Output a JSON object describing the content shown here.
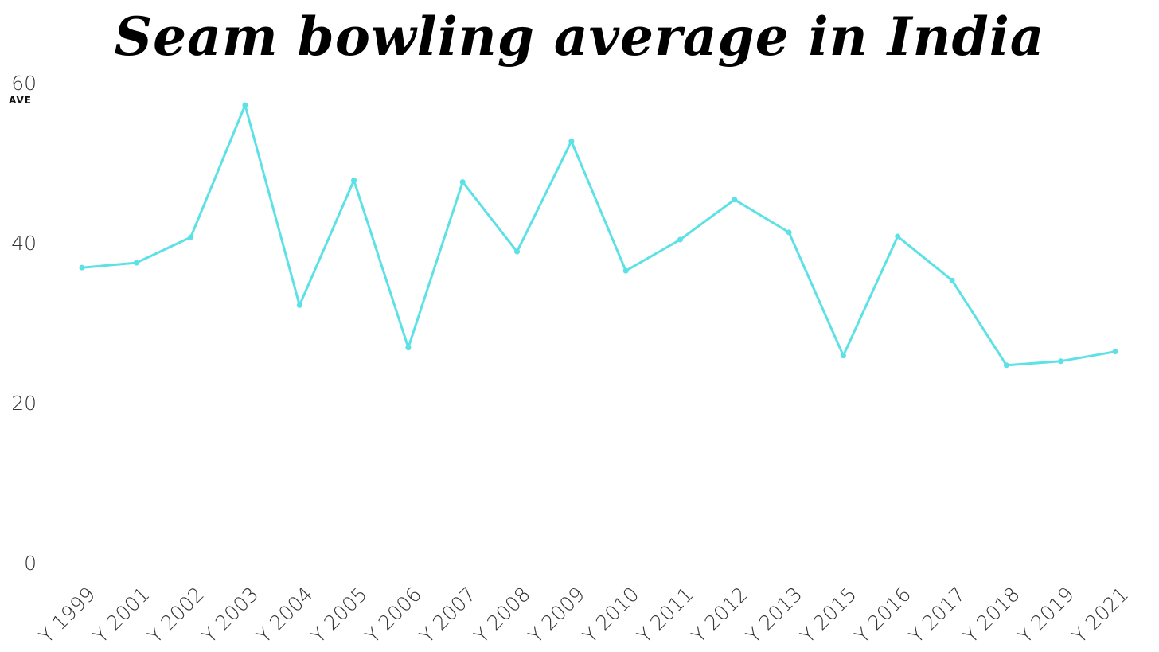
{
  "chart_data": {
    "type": "line",
    "title": "Seam bowling average in India",
    "xlabel": "",
    "ylabel": "AVE",
    "categories": [
      "Y 1999",
      "Y 2001",
      "Y 2002",
      "Y 2003",
      "Y 2004",
      "Y 2005",
      "Y 2006",
      "Y 2007",
      "Y 2008",
      "Y 2009",
      "Y 2010",
      "Y 2011",
      "Y 2012",
      "Y 2013",
      "Y 2015",
      "Y 2016",
      "Y 2017",
      "Y 2018",
      "Y 2019",
      "Y 2021"
    ],
    "series": [
      {
        "values": [
          36.9,
          37.5,
          40.7,
          57.2,
          32.2,
          47.8,
          26.9,
          47.6,
          38.9,
          52.7,
          36.5,
          40.4,
          45.4,
          41.3,
          25.9,
          40.8,
          35.3,
          24.7,
          25.2,
          26.4
        ]
      }
    ],
    "yticks": [
      0,
      20,
      40,
      60
    ],
    "ylim": [
      0,
      60
    ],
    "grid": false,
    "legend": "none",
    "line_color": "#5ce1e6"
  }
}
